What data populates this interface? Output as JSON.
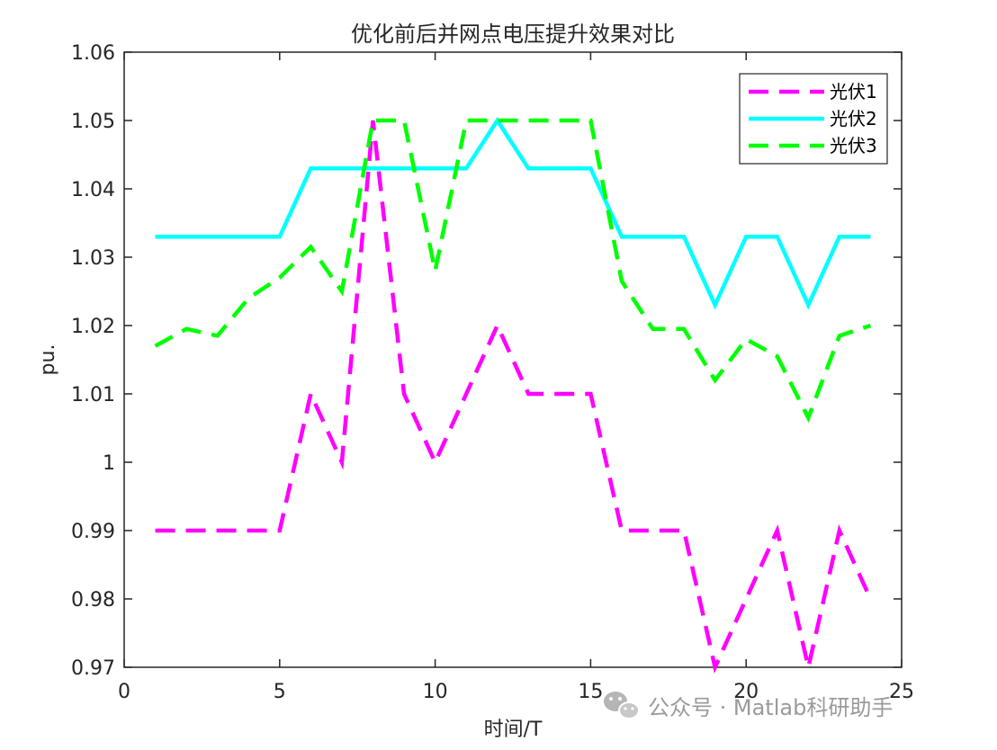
{
  "chart_data": {
    "type": "line",
    "title": "优化前后并网点电压提升效果对比",
    "xlabel": "时间/T",
    "ylabel": "pu.",
    "xlim": [
      0,
      25
    ],
    "ylim": [
      0.97,
      1.06
    ],
    "xticks": [
      0,
      5,
      10,
      15,
      20,
      25
    ],
    "xtick_labels": [
      "0",
      "5",
      "10",
      "15",
      "20",
      "25"
    ],
    "yticks": [
      0.97,
      0.98,
      0.99,
      1.0,
      1.01,
      1.02,
      1.03,
      1.04,
      1.05,
      1.06
    ],
    "ytick_labels": [
      "0.97",
      "0.98",
      "0.99",
      "1",
      "1.01",
      "1.02",
      "1.03",
      "1.04",
      "1.05",
      "1.06"
    ],
    "grid": false,
    "legend_position": "top-right",
    "x": [
      1,
      2,
      3,
      4,
      5,
      6,
      7,
      8,
      9,
      10,
      11,
      12,
      13,
      14,
      15,
      16,
      17,
      18,
      19,
      20,
      21,
      22,
      23,
      24
    ],
    "series": [
      {
        "name": "光伏1",
        "color": "#ff00ff",
        "style": "dashed",
        "values": [
          0.99,
          0.99,
          0.99,
          0.99,
          0.99,
          1.01,
          1.0,
          1.05,
          1.01,
          1.0,
          1.01,
          1.02,
          1.01,
          1.01,
          1.01,
          0.99,
          0.99,
          0.99,
          0.97,
          0.98,
          0.99,
          0.97,
          0.99,
          0.98
        ]
      },
      {
        "name": "光伏2",
        "color": "#00ffff",
        "style": "solid",
        "values": [
          1.033,
          1.033,
          1.033,
          1.033,
          1.033,
          1.043,
          1.043,
          1.043,
          1.043,
          1.043,
          1.043,
          1.05,
          1.043,
          1.043,
          1.043,
          1.033,
          1.033,
          1.033,
          1.023,
          1.033,
          1.033,
          1.023,
          1.033,
          1.033
        ]
      },
      {
        "name": "光伏3",
        "color": "#00ff00",
        "style": "dashed",
        "values": [
          1.017,
          1.0195,
          1.0185,
          1.024,
          1.027,
          1.0315,
          1.025,
          1.05,
          1.05,
          1.028,
          1.05,
          1.05,
          1.05,
          1.05,
          1.05,
          1.0265,
          1.0195,
          1.0195,
          1.012,
          1.018,
          1.0155,
          1.0065,
          1.0185,
          1.02
        ]
      }
    ]
  },
  "watermark": {
    "icon": "wechat-icon",
    "text": "公众号 · Matlab科研助手"
  }
}
